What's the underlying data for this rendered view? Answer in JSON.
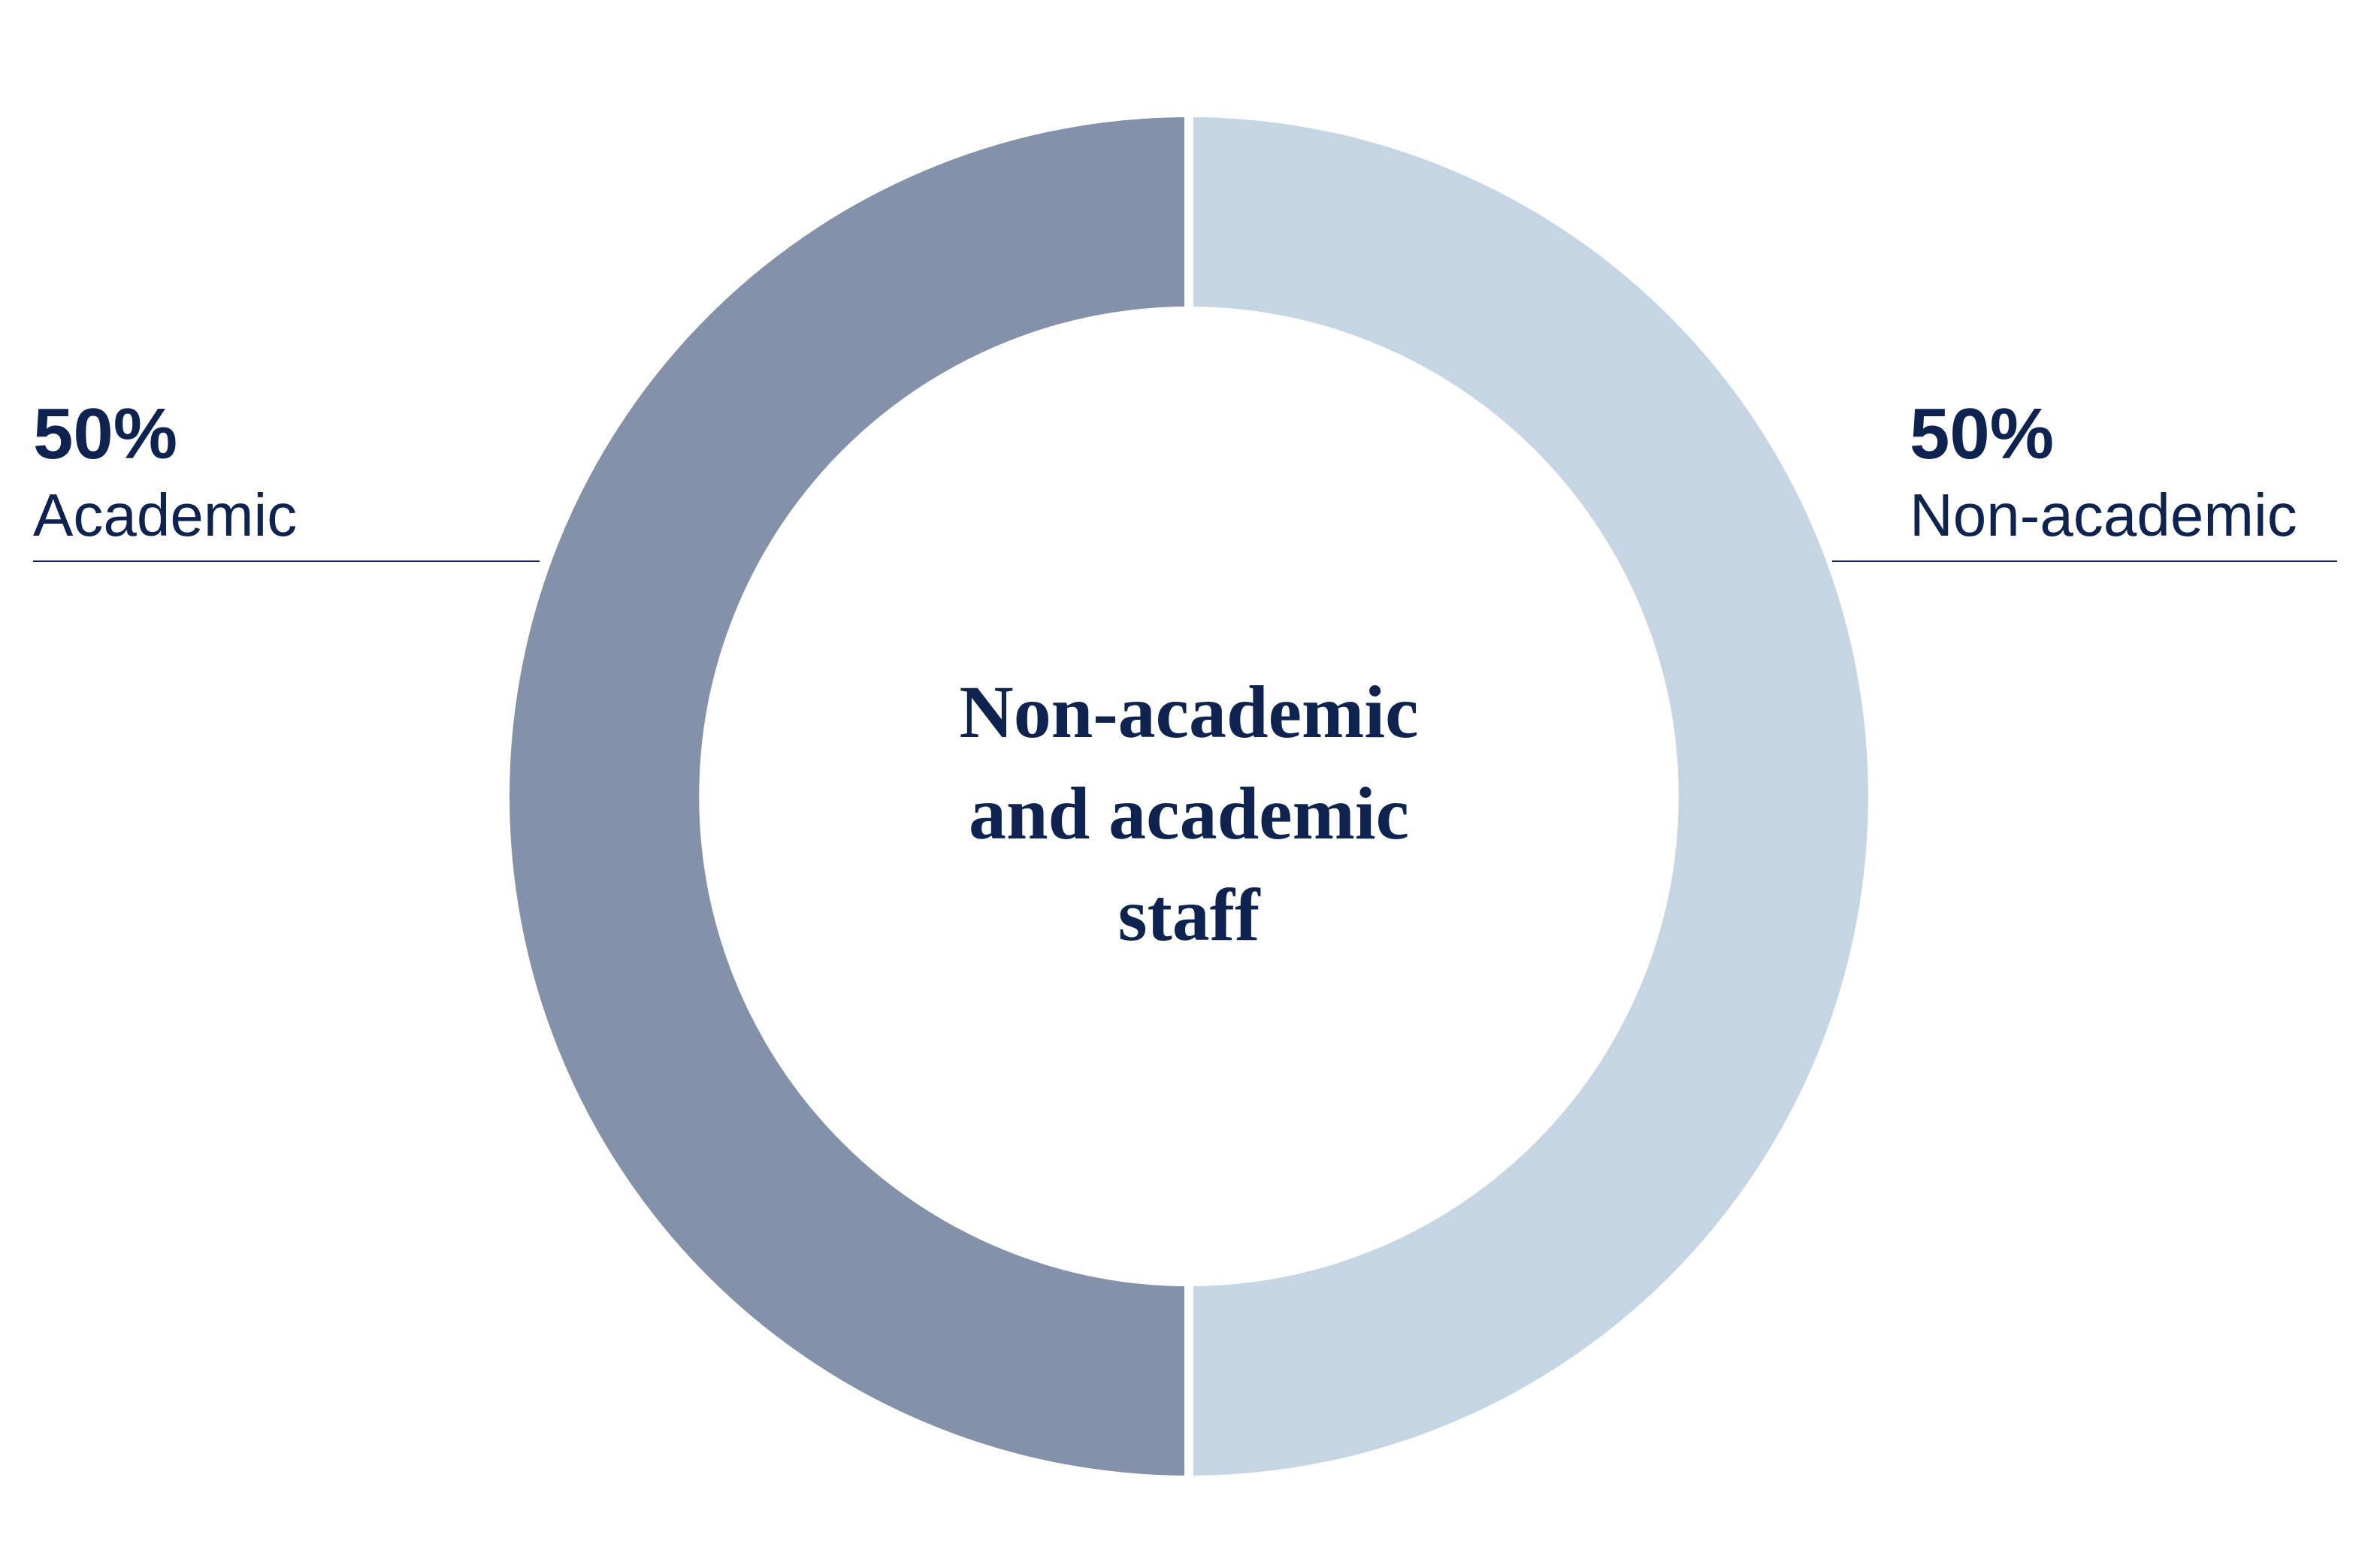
{
  "chart_data": {
    "type": "pie",
    "donut": true,
    "title": "Non-academic and academic staff",
    "categories": [
      "Academic",
      "Non-academic"
    ],
    "values": [
      50,
      50
    ],
    "value_labels": [
      "50%",
      "50%"
    ],
    "colors": [
      "#8391aa",
      "#c5d5e4"
    ]
  }
}
